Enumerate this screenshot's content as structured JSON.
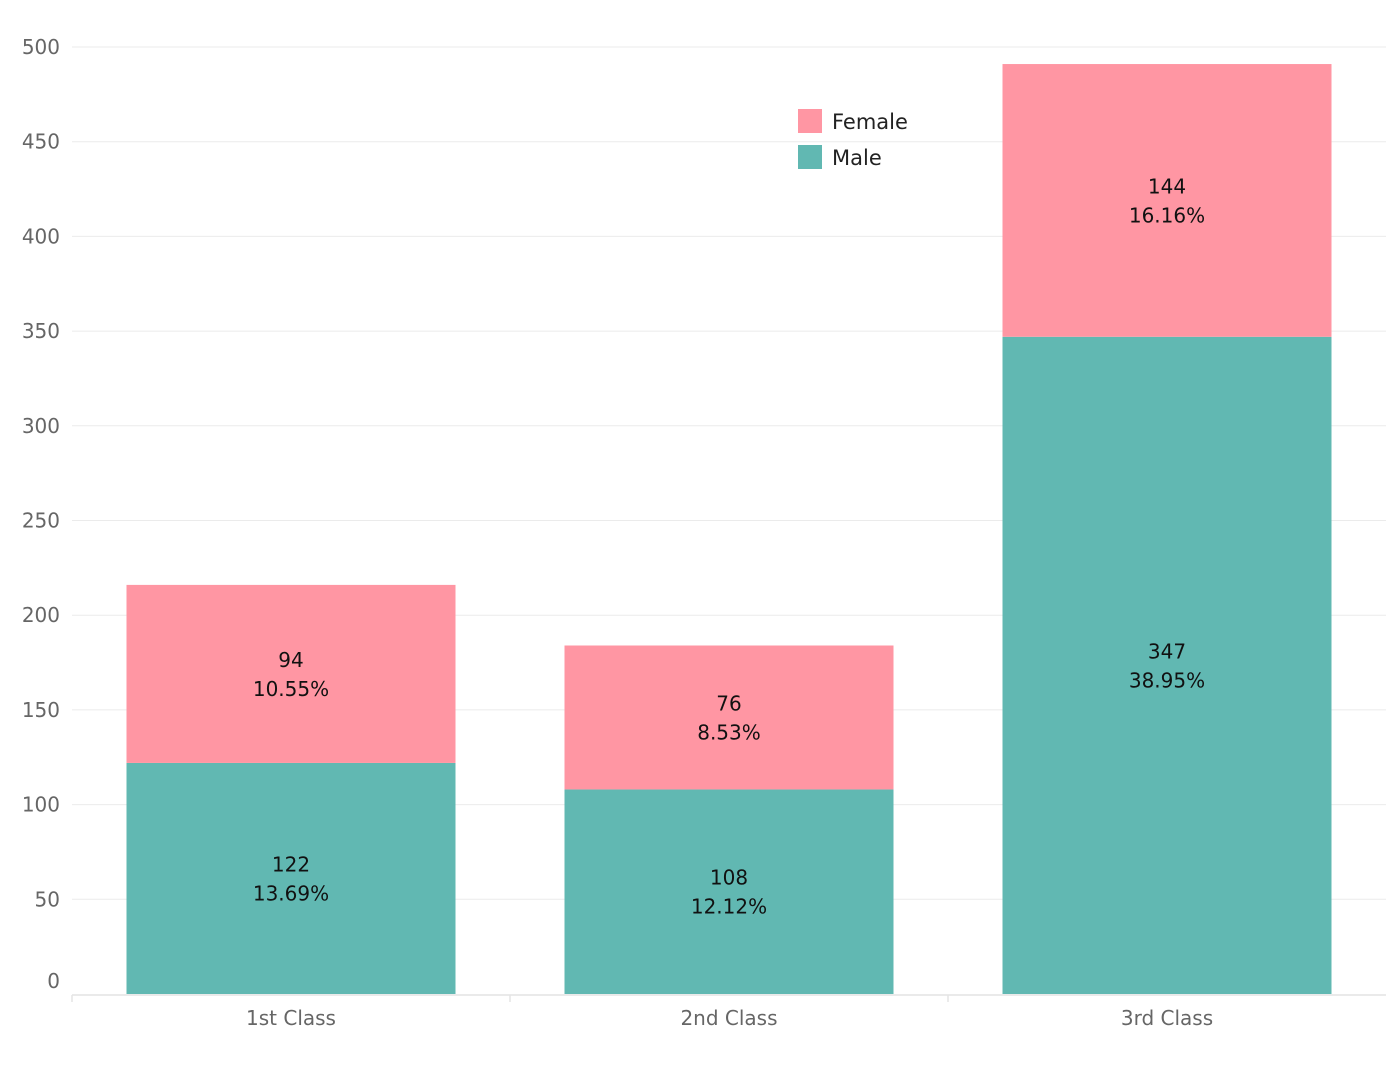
{
  "chart_data": {
    "type": "bar",
    "stacked": true,
    "categories": [
      "1st Class",
      "2nd Class",
      "3rd Class"
    ],
    "series": [
      {
        "name": "Male",
        "color": "#61b8b2",
        "values": [
          122,
          108,
          347
        ],
        "percent_labels": [
          "13.69%",
          "12.12%",
          "38.95%"
        ]
      },
      {
        "name": "Female",
        "color": "#ff96a3",
        "values": [
          94,
          76,
          144
        ],
        "percent_labels": [
          "10.55%",
          "8.53%",
          "16.16%"
        ]
      }
    ],
    "yticks": [
      0,
      50,
      100,
      150,
      200,
      250,
      300,
      350,
      400,
      450,
      500
    ],
    "ylim": [
      0,
      500
    ],
    "grid": true,
    "legend": {
      "placement": "top-center",
      "order": [
        "Female",
        "Male"
      ]
    },
    "title": "",
    "xlabel": "",
    "ylabel": ""
  }
}
